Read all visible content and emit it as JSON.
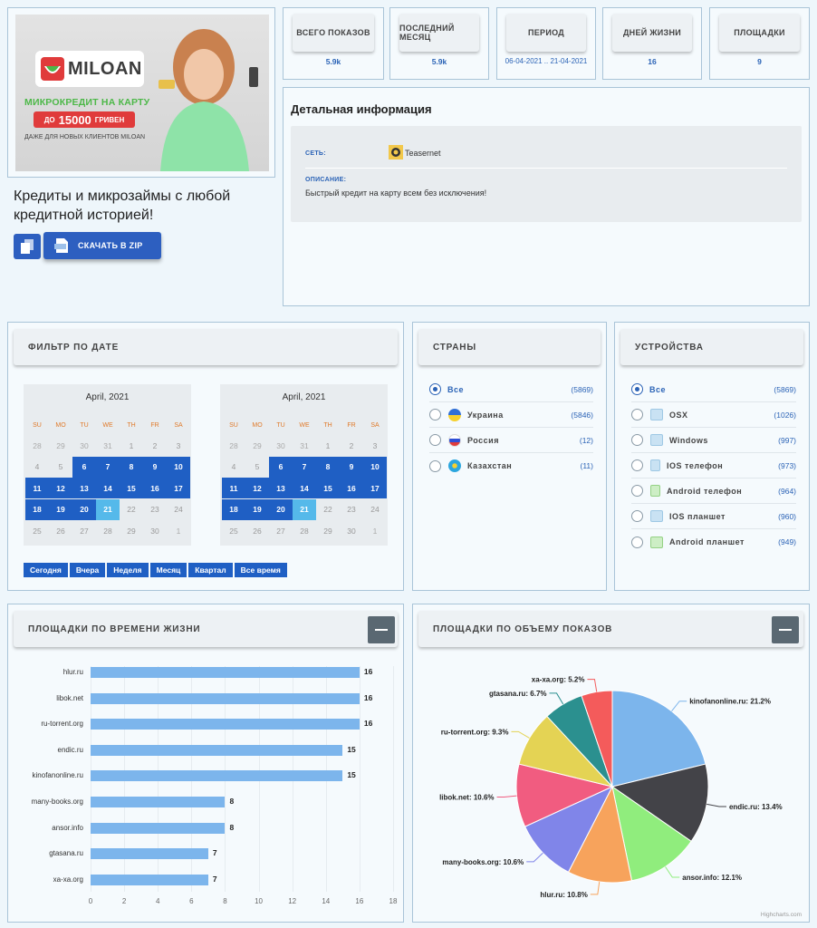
{
  "banner": {
    "brand": "MILOAN",
    "line1": "МИКРОКРЕДИТ НА КАРТУ",
    "amount_prefix": "ДО",
    "amount": "15000",
    "amount_suffix": "ГРИВЕН",
    "line3": "ДАЖЕ ДЛЯ НОВЫХ КЛИЕНТОВ MILOAN"
  },
  "ad_title": "Кредиты и микрозаймы с любой кредитной историей!",
  "zip_label": "СКАЧАТЬ В ZIP",
  "stats": [
    {
      "label": "ВСЕГО ПОКАЗОВ",
      "value": "5.9k"
    },
    {
      "label": "ПОСЛЕДНИЙ МЕСЯЦ",
      "value": "5.9k"
    },
    {
      "label": "ПЕРИОД",
      "value": "06-04-2021 .. 21-04-2021"
    },
    {
      "label": "ДНЕЙ ЖИЗНИ",
      "value": "16"
    },
    {
      "label": "ПЛОЩАДКИ",
      "value": "9"
    }
  ],
  "detail": {
    "title": "Детальная информация",
    "network_label": "СЕТЬ:",
    "network_value": "Teasernet",
    "desc_label": "ОПИСАНИЕ:",
    "desc_value": "Быстрый кредит на карту всем без исключения!"
  },
  "date_filter": {
    "title": "ФИЛЬТР ПО ДАТЕ",
    "month_label": "April, 2021",
    "dow": [
      "SU",
      "MO",
      "TU",
      "WE",
      "TH",
      "FR",
      "SA"
    ],
    "weeks": [
      [
        "28",
        "29",
        "30",
        "31",
        "1",
        "2",
        "3"
      ],
      [
        "4",
        "5",
        "6",
        "7",
        "8",
        "9",
        "10"
      ],
      [
        "11",
        "12",
        "13",
        "14",
        "15",
        "16",
        "17"
      ],
      [
        "18",
        "19",
        "20",
        "21",
        "22",
        "23",
        "24"
      ],
      [
        "25",
        "26",
        "27",
        "28",
        "29",
        "30",
        "1"
      ]
    ],
    "range_buttons": [
      "Сегодня",
      "Вчера",
      "Неделя",
      "Месяц",
      "Квартал",
      "Все время"
    ]
  },
  "countries": {
    "title": "СТРАНЫ",
    "items": [
      {
        "label": "Все",
        "count": "(5869)",
        "selected": true
      },
      {
        "label": "Украина",
        "count": "(5846)",
        "selected": false
      },
      {
        "label": "Россия",
        "count": "(12)",
        "selected": false
      },
      {
        "label": "Казахстан",
        "count": "(11)",
        "selected": false
      }
    ]
  },
  "devices": {
    "title": "УСТРОЙСТВА",
    "items": [
      {
        "label": "Все",
        "count": "(5869)",
        "selected": true
      },
      {
        "label": "OSX",
        "count": "(1026)",
        "selected": false
      },
      {
        "label": "Windows",
        "count": "(997)",
        "selected": false
      },
      {
        "label": "IOS телефон",
        "count": "(973)",
        "selected": false
      },
      {
        "label": "Android телефон",
        "count": "(964)",
        "selected": false
      },
      {
        "label": "IOS планшет",
        "count": "(960)",
        "selected": false
      },
      {
        "label": "Android планшет",
        "count": "(949)",
        "selected": false
      }
    ]
  },
  "lifetime_card": {
    "title": "ПЛОЩАДКИ ПО ВРЕМЕНИ ЖИЗНИ"
  },
  "volume_card": {
    "title": "ПЛОЩАДКИ ПО ОБЪЕМУ ПОКАЗОВ",
    "credit": "Highcharts.com"
  },
  "chart_data": [
    {
      "type": "bar",
      "orientation": "horizontal",
      "categories": [
        "hlur.ru",
        "libok.net",
        "ru-torrent.org",
        "endic.ru",
        "kinofanonline.ru",
        "many-books.org",
        "ansor.info",
        "gtasana.ru",
        "xa-xa.org"
      ],
      "values": [
        16,
        16,
        16,
        15,
        15,
        8,
        8,
        7,
        7
      ],
      "xlim": [
        0,
        18
      ],
      "ticks": [
        "0",
        "2",
        "4",
        "6",
        "8",
        "10",
        "12",
        "14",
        "16",
        "18"
      ],
      "color": "#7cb5ec",
      "grid": true
    },
    {
      "type": "pie",
      "slices": [
        {
          "name": "kinofanonline.ru",
          "value": 21.2,
          "label": "kinofanonline.ru: 21.2%",
          "color": "#7cb5ec"
        },
        {
          "name": "endic.ru",
          "value": 13.4,
          "label": "endic.ru: 13.4%",
          "color": "#434348"
        },
        {
          "name": "ansor.info",
          "value": 12.1,
          "label": "ansor.info: 12.1%",
          "color": "#90ed7d"
        },
        {
          "name": "hlur.ru",
          "value": 10.8,
          "label": "hlur.ru: 10.8%",
          "color": "#f7a35c"
        },
        {
          "name": "many-books.org",
          "value": 10.6,
          "label": "many-books.org: 10.6%",
          "color": "#8085e9"
        },
        {
          "name": "libok.net",
          "value": 10.6,
          "label": "libok.net: 10.6%",
          "color": "#f15c80"
        },
        {
          "name": "ru-torrent.org",
          "value": 9.3,
          "label": "ru-torrent.org: 9.3%",
          "color": "#e4d354"
        },
        {
          "name": "gtasana.ru",
          "value": 6.7,
          "label": "gtasana.ru: 6.7%",
          "color": "#2b908f"
        },
        {
          "name": "xa-xa.org",
          "value": 5.2,
          "label": "xa-xa.org: 5.2%",
          "color": "#f45b5b"
        }
      ]
    }
  ]
}
